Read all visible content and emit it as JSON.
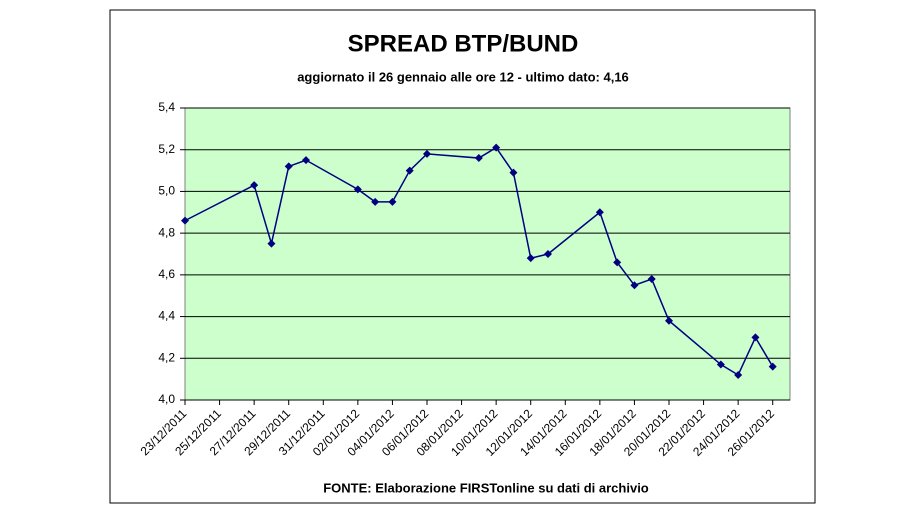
{
  "chart_data": {
    "type": "line",
    "title": "SPREAD BTP/BUND",
    "subtitle": "aggiornato il 26 gennaio alle ore 12 - ultimo dato: 4,16",
    "source": "FONTE: Elaborazione FIRSTonline su dati di archivio",
    "x": [
      "23/12/2011",
      "27/12/2011",
      "28/12/2011",
      "29/12/2011",
      "30/12/2011",
      "02/01/2012",
      "03/01/2012",
      "04/01/2012",
      "05/01/2012",
      "06/01/2012",
      "09/01/2012",
      "10/01/2012",
      "11/01/2012",
      "12/01/2012",
      "13/01/2012",
      "16/01/2012",
      "17/01/2012",
      "18/01/2012",
      "19/01/2012",
      "20/01/2012",
      "23/01/2012",
      "24/01/2012",
      "25/01/2012",
      "26/01/2012"
    ],
    "series": [
      {
        "color": "#000080",
        "values": [
          4.86,
          5.03,
          4.75,
          5.12,
          5.15,
          5.01,
          4.95,
          4.95,
          5.1,
          5.18,
          5.16,
          5.21,
          5.09,
          4.68,
          4.7,
          4.9,
          4.66,
          4.55,
          4.58,
          4.38,
          4.17,
          4.12,
          4.3,
          4.16
        ]
      }
    ],
    "xlim": [
      "23/12/2011",
      "27/01/2012"
    ],
    "xticks": [
      "23/12/2011",
      "25/12/2011",
      "27/12/2011",
      "29/12/2011",
      "31/12/2011",
      "02/01/2012",
      "04/01/2012",
      "06/01/2012",
      "08/01/2012",
      "10/01/2012",
      "12/01/2012",
      "14/01/2012",
      "16/01/2012",
      "18/01/2012",
      "20/01/2012",
      "22/01/2012",
      "24/01/2012",
      "26/01/2012"
    ],
    "ylim": [
      4.0,
      5.4
    ],
    "yticks": [
      {
        "value": 4.0,
        "label": "4,0"
      },
      {
        "value": 4.2,
        "label": "4,2"
      },
      {
        "value": 4.4,
        "label": "4,4"
      },
      {
        "value": 4.6,
        "label": "4,6"
      },
      {
        "value": 4.8,
        "label": "4,8"
      },
      {
        "value": 5.0,
        "label": "5,0"
      },
      {
        "value": 5.2,
        "label": "5,2"
      },
      {
        "value": 5.4,
        "label": "5,4"
      }
    ],
    "grid": true,
    "plot_background": "#ccffcc"
  }
}
